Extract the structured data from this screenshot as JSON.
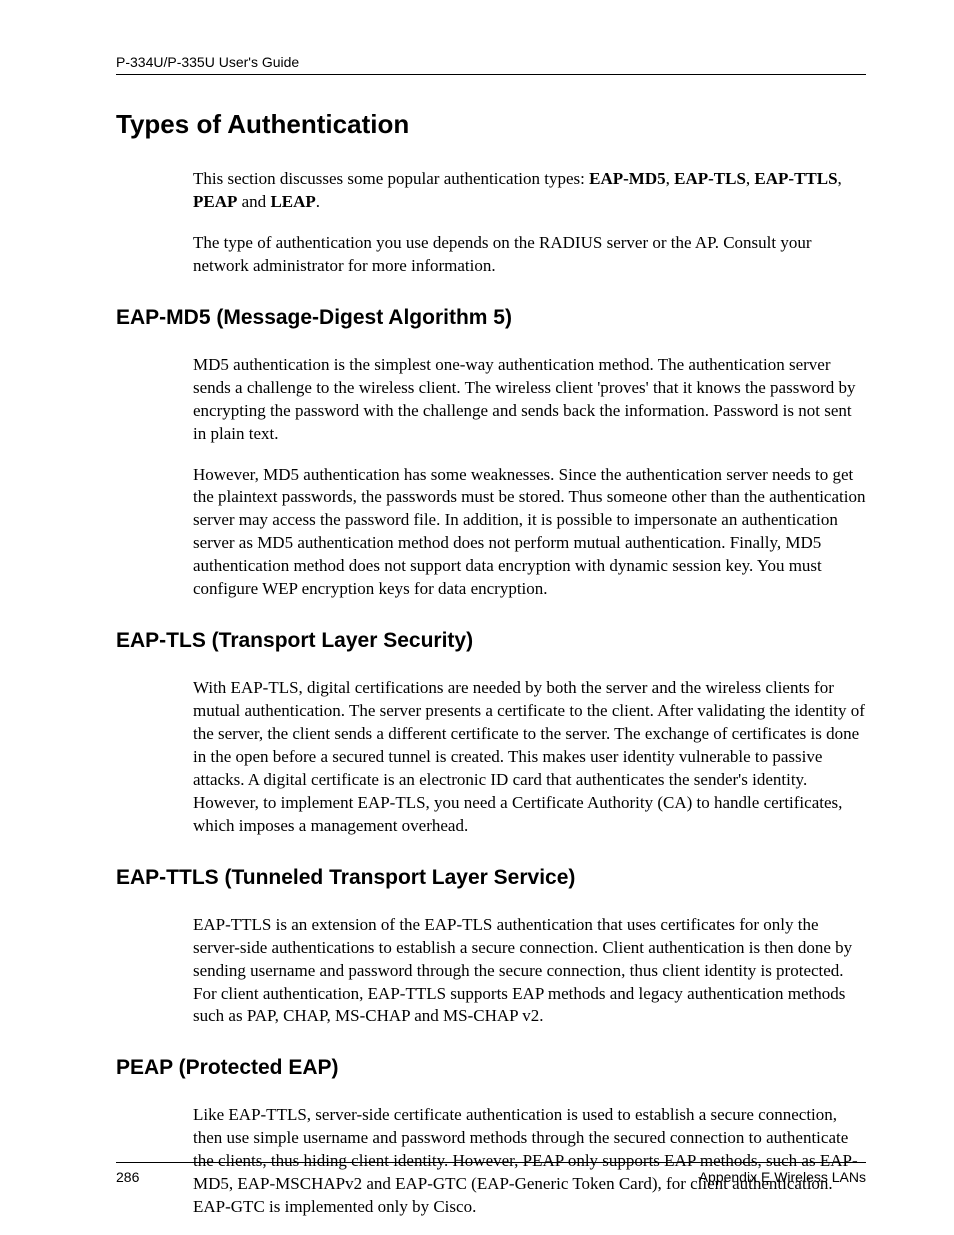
{
  "header": {
    "title": "P-334U/P-335U User's Guide"
  },
  "main": {
    "h1": "Types of Authentication",
    "intro": {
      "p1_pre": "This section discusses some popular authentication types: ",
      "b1": "EAP-MD5",
      "s1": ", ",
      "b2": "EAP-TLS",
      "s2": ", ",
      "b3": "EAP-TTLS",
      "s3": ", ",
      "b4": "PEAP",
      "s4": " and ",
      "b5": "LEAP",
      "s5": "."
    },
    "intro_p2": "The type of authentication you use depends on the RADIUS server or the AP. Consult your network administrator for more information.",
    "sec1": {
      "title": "EAP-MD5 (Message-Digest Algorithm 5)",
      "p1": "MD5 authentication is the simplest one-way authentication method. The authentication server sends a challenge to the wireless client. The wireless client 'proves' that it knows the password by encrypting the password with the challenge and sends back the information. Password is not sent in plain text.",
      "p2": "However, MD5 authentication has some weaknesses. Since the authentication server needs to get the plaintext passwords, the passwords must be stored. Thus someone other than the authentication server may access the password file. In addition, it is possible to impersonate an authentication server as MD5 authentication method does not perform mutual authentication. Finally, MD5 authentication method does not support data encryption with dynamic session key. You must configure WEP encryption keys for data encryption."
    },
    "sec2": {
      "title": "EAP-TLS (Transport Layer Security)",
      "p1": "With EAP-TLS, digital certifications are needed by both the server and the wireless clients for mutual authentication. The server presents a certificate to the client. After validating the identity of the server, the client sends a different certificate to the server. The exchange of certificates is done in the open before a secured tunnel is created. This makes user identity vulnerable to passive attacks. A digital certificate is an electronic ID card that authenticates the sender's identity. However, to implement EAP-TLS, you need a Certificate Authority (CA) to handle certificates, which imposes a management overhead."
    },
    "sec3": {
      "title": "EAP-TTLS (Tunneled Transport Layer Service)",
      "p1": "EAP-TTLS is an extension of the EAP-TLS authentication that uses certificates for only the server-side authentications to establish a secure connection. Client authentication is then done by sending username and password through the secure connection, thus client identity is protected. For client authentication, EAP-TTLS supports EAP methods and legacy authentication methods such as PAP, CHAP, MS-CHAP and MS-CHAP v2."
    },
    "sec4": {
      "title": "PEAP (Protected EAP)",
      "p1": "Like EAP-TTLS, server-side certificate authentication is used to establish a secure connection, then use simple username and password methods through the secured connection to authenticate the clients, thus hiding client identity. However, PEAP only supports EAP methods, such as EAP-MD5, EAP-MSCHAPv2 and EAP-GTC (EAP-Generic Token Card), for client authentication. EAP-GTC is implemented only by Cisco."
    }
  },
  "footer": {
    "page_number": "286",
    "section": "Appendix E Wireless LANs"
  }
}
